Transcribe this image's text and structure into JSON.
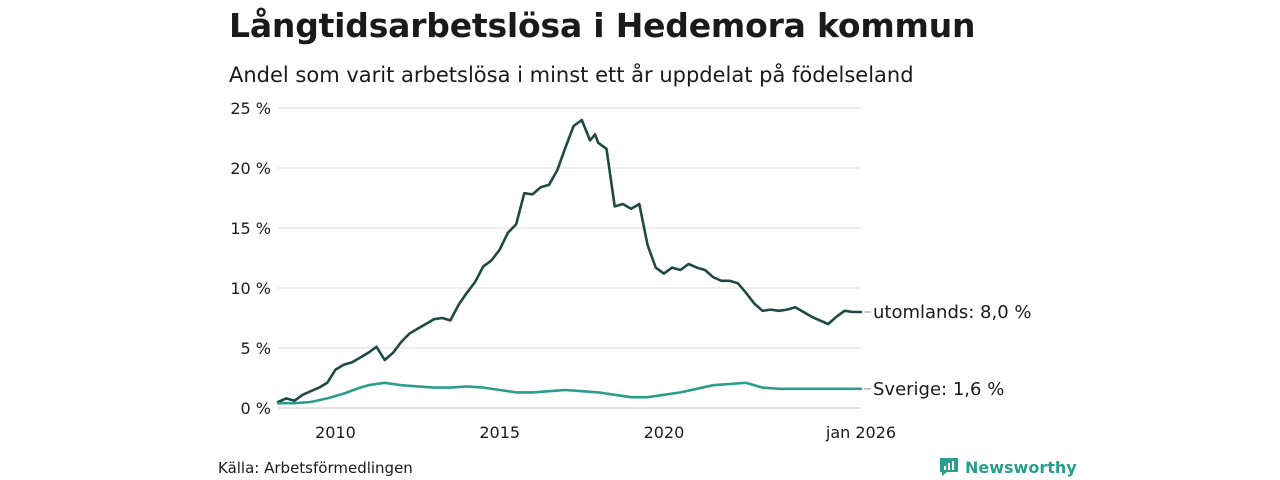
{
  "title": "Långtidsarbetslösa i Hedemora kommun",
  "subtitle": "Andel som varit arbetslösa i minst ett år uppdelat på födelseland",
  "source": "Källa: Arbetsförmedlingen",
  "logo_text": "Newsworthy",
  "colors": {
    "utomlands": "#1f4a42",
    "sverige": "#2a9d8f",
    "grid": "#dcdcdc",
    "brand": "#2a9d8f"
  },
  "chart_data": {
    "type": "line",
    "title": "Långtidsarbetslösa i Hedemora kommun",
    "subtitle": "Andel som varit arbetslösa i minst ett år uppdelat på födelseland",
    "xlabel": "",
    "ylabel": "",
    "ylim": [
      0,
      25
    ],
    "xlim": [
      2008.25,
      2026.0
    ],
    "yticks": [
      0,
      5,
      10,
      15,
      20,
      25
    ],
    "ytick_labels": [
      "0 %",
      "5 %",
      "10 %",
      "15 %",
      "20 %",
      "25 %"
    ],
    "xticks": [
      2010,
      2015,
      2020,
      2026
    ],
    "xtick_labels": [
      "2010",
      "2015",
      "2020",
      "jan 2026"
    ],
    "grid": true,
    "series": [
      {
        "name": "utomlands",
        "end_label": "utomlands: 8,0 %",
        "x": [
          2008.25,
          2008.5,
          2008.75,
          2009.0,
          2009.25,
          2009.5,
          2009.75,
          2010.0,
          2010.25,
          2010.5,
          2010.75,
          2011.0,
          2011.25,
          2011.5,
          2011.75,
          2012.0,
          2012.25,
          2012.5,
          2012.75,
          2013.0,
          2013.25,
          2013.5,
          2013.75,
          2014.0,
          2014.25,
          2014.5,
          2014.75,
          2015.0,
          2015.25,
          2015.5,
          2015.75,
          2016.0,
          2016.25,
          2016.5,
          2016.75,
          2017.0,
          2017.25,
          2017.5,
          2017.75,
          2017.9,
          2018.0,
          2018.25,
          2018.5,
          2018.75,
          2019.0,
          2019.25,
          2019.5,
          2019.75,
          2020.0,
          2020.25,
          2020.5,
          2020.75,
          2021.0,
          2021.25,
          2021.5,
          2021.75,
          2022.0,
          2022.25,
          2022.5,
          2022.75,
          2023.0,
          2023.25,
          2023.5,
          2023.75,
          2024.0,
          2024.25,
          2024.5,
          2024.75,
          2025.0,
          2025.25,
          2025.5,
          2025.75,
          2026.0
        ],
        "values": [
          0.5,
          0.8,
          0.6,
          1.1,
          1.4,
          1.7,
          2.1,
          3.2,
          3.6,
          3.8,
          4.2,
          4.6,
          5.1,
          4.0,
          4.6,
          5.5,
          6.2,
          6.6,
          7.0,
          7.4,
          7.5,
          7.3,
          8.6,
          9.6,
          10.5,
          11.8,
          12.3,
          13.2,
          14.6,
          15.3,
          17.9,
          17.8,
          18.4,
          18.6,
          19.8,
          21.7,
          23.5,
          24.0,
          22.3,
          22.8,
          22.1,
          21.6,
          16.8,
          17.0,
          16.6,
          17.0,
          13.6,
          11.7,
          11.2,
          11.7,
          11.5,
          12.0,
          11.7,
          11.5,
          10.9,
          10.6,
          10.6,
          10.4,
          9.6,
          8.7,
          8.1,
          8.2,
          8.1,
          8.2,
          8.4,
          8.0,
          7.6,
          7.3,
          7.0,
          7.6,
          8.1,
          8.0,
          8.0
        ]
      },
      {
        "name": "Sverige",
        "end_label": "Sverige: 1,6 %",
        "x": [
          2008.25,
          2008.75,
          2009.25,
          2009.75,
          2010.25,
          2010.75,
          2011.0,
          2011.5,
          2012.0,
          2012.5,
          2013.0,
          2013.5,
          2014.0,
          2014.5,
          2015.0,
          2015.5,
          2016.0,
          2016.5,
          2017.0,
          2017.5,
          2018.0,
          2018.5,
          2019.0,
          2019.5,
          2020.0,
          2020.5,
          2021.0,
          2021.5,
          2022.0,
          2022.5,
          2023.0,
          2023.5,
          2024.0,
          2024.5,
          2025.0,
          2025.5,
          2026.0
        ],
        "values": [
          0.4,
          0.4,
          0.5,
          0.8,
          1.2,
          1.7,
          1.9,
          2.1,
          1.9,
          1.8,
          1.7,
          1.7,
          1.8,
          1.7,
          1.5,
          1.3,
          1.3,
          1.4,
          1.5,
          1.4,
          1.3,
          1.1,
          0.9,
          0.9,
          1.1,
          1.3,
          1.6,
          1.9,
          2.0,
          2.1,
          1.7,
          1.6,
          1.6,
          1.6,
          1.6,
          1.6,
          1.6
        ]
      }
    ]
  }
}
